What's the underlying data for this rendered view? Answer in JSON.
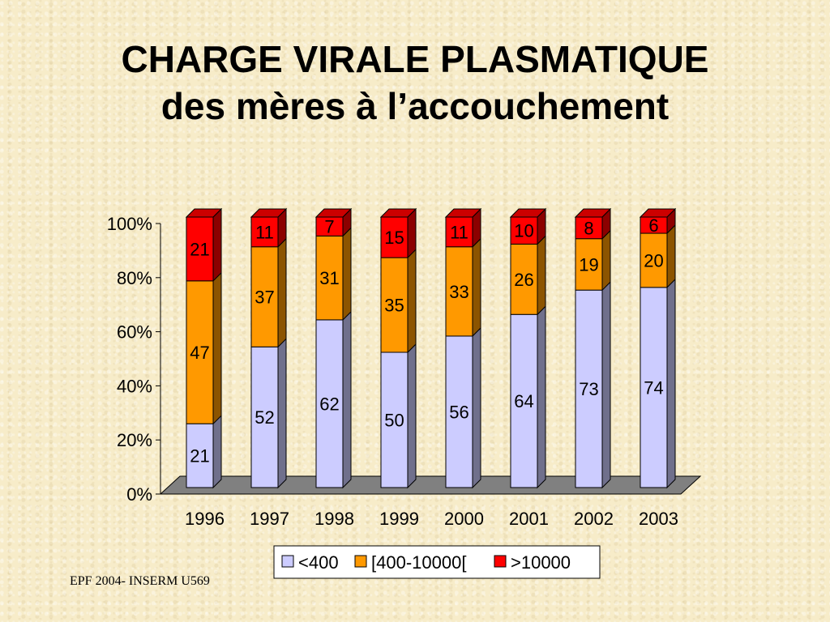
{
  "slide": {
    "title_line1": "CHARGE VIRALE PLASMATIQUE",
    "title_line2": "des mères à l’accouchement",
    "footer": "EPF 2004- INSERM U569"
  },
  "chart_data": {
    "type": "bar",
    "stacked": true,
    "percent_stacked": true,
    "three_d": true,
    "categories": [
      "1996",
      "1997",
      "1998",
      "1999",
      "2000",
      "2001",
      "2002",
      "2003"
    ],
    "series": [
      {
        "name": "<400",
        "color": "#ccccff",
        "values": [
          21,
          52,
          62,
          50,
          56,
          64,
          73,
          74
        ]
      },
      {
        "name": "[400-10000[",
        "color": "#ff9900",
        "values": [
          47,
          37,
          31,
          35,
          33,
          26,
          19,
          20
        ]
      },
      {
        "name": ">10000",
        "color": "#ff0000",
        "values": [
          21,
          11,
          7,
          15,
          11,
          10,
          8,
          6
        ]
      }
    ],
    "y_ticks": [
      "0%",
      "20%",
      "40%",
      "60%",
      "80%",
      "100%"
    ],
    "ylim": [
      0,
      100
    ],
    "legend_position": "bottom",
    "grid": false
  }
}
